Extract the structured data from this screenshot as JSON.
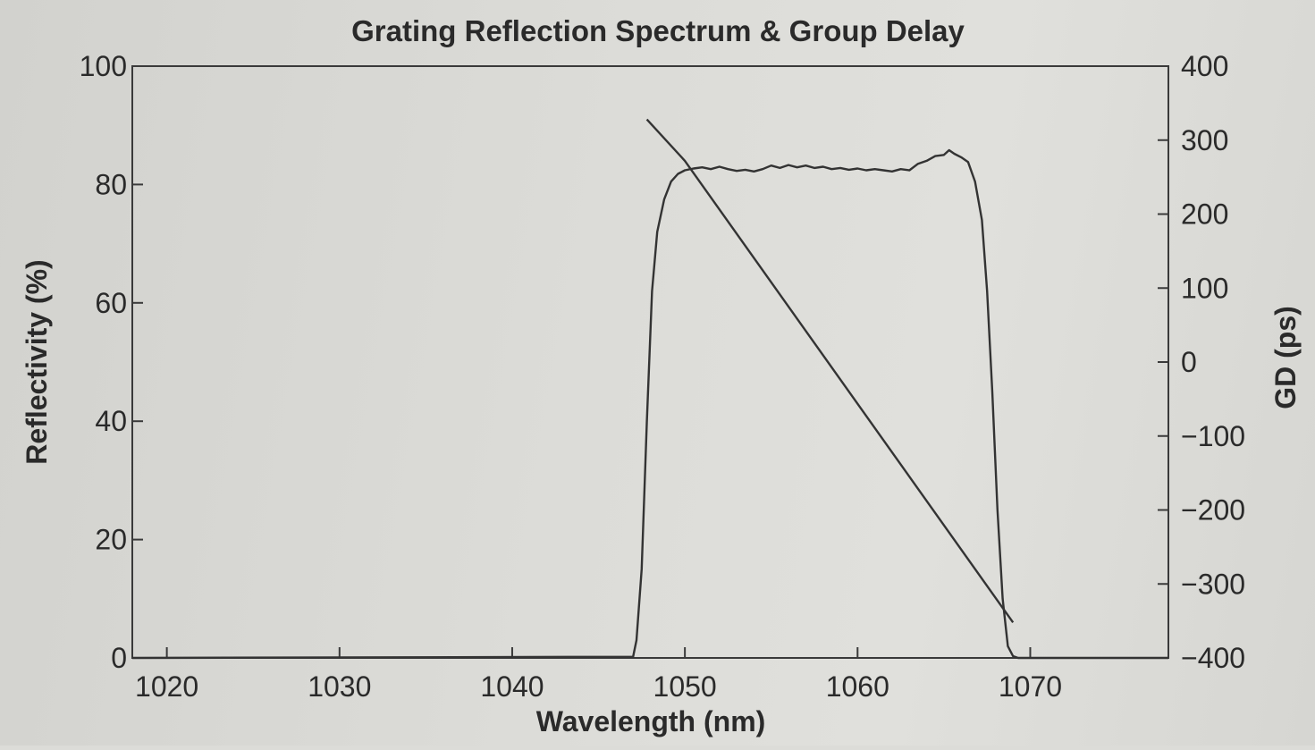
{
  "chart_data": {
    "type": "line",
    "title": "Grating Reflection Spectrum & Group Delay",
    "xlabel": "Wavelength (nm)",
    "ylabel": "Reflectivity (%)",
    "y2label": "GD (ps)",
    "xlim": [
      1018,
      1078
    ],
    "ylim": [
      0,
      100
    ],
    "y2lim": [
      -400,
      400
    ],
    "xticks": [
      1020,
      1030,
      1040,
      1050,
      1060,
      1070
    ],
    "yticks": [
      0,
      20,
      40,
      60,
      80,
      100
    ],
    "y2ticks": [
      400,
      300,
      200,
      100,
      0,
      -100,
      -200,
      -300,
      -400
    ],
    "grid": false,
    "legend": "none",
    "series": [
      {
        "axis": "left",
        "x": [
          1018,
          1047.0,
          1047.2,
          1047.5,
          1047.8,
          1048.1,
          1048.4,
          1048.8,
          1049.2,
          1049.6,
          1050.0,
          1050.5,
          1051.0,
          1051.5,
          1052.0,
          1052.5,
          1053.0,
          1053.5,
          1054.0,
          1054.5,
          1055.0,
          1055.5,
          1056.0,
          1056.5,
          1057.0,
          1057.5,
          1058.0,
          1058.5,
          1059.0,
          1059.5,
          1060.0,
          1060.5,
          1061.0,
          1061.5,
          1062.0,
          1062.5,
          1063.0,
          1063.5,
          1064.0,
          1064.5,
          1065.0,
          1065.3,
          1065.6,
          1066.0,
          1066.4,
          1066.8,
          1067.2,
          1067.5,
          1067.8,
          1068.1,
          1068.4,
          1068.7,
          1069.0,
          1069.3,
          1078
        ],
        "y": [
          0,
          0.2,
          3,
          15,
          40,
          62,
          72,
          77.5,
          80.5,
          81.8,
          82.4,
          82.7,
          82.9,
          82.6,
          83.0,
          82.6,
          82.3,
          82.5,
          82.2,
          82.6,
          83.2,
          82.8,
          83.3,
          82.9,
          83.2,
          82.8,
          83.0,
          82.6,
          82.8,
          82.5,
          82.7,
          82.4,
          82.6,
          82.4,
          82.2,
          82.6,
          82.4,
          83.5,
          84.0,
          84.8,
          85.0,
          85.8,
          85.2,
          84.6,
          83.8,
          80.5,
          74,
          62,
          45,
          25,
          10,
          2,
          0.3,
          0,
          0
        ]
      },
      {
        "axis": "right",
        "x": [
          1047.8,
          1050.0,
          1069.0
        ],
        "y": [
          328,
          272,
          -352
        ]
      }
    ]
  }
}
